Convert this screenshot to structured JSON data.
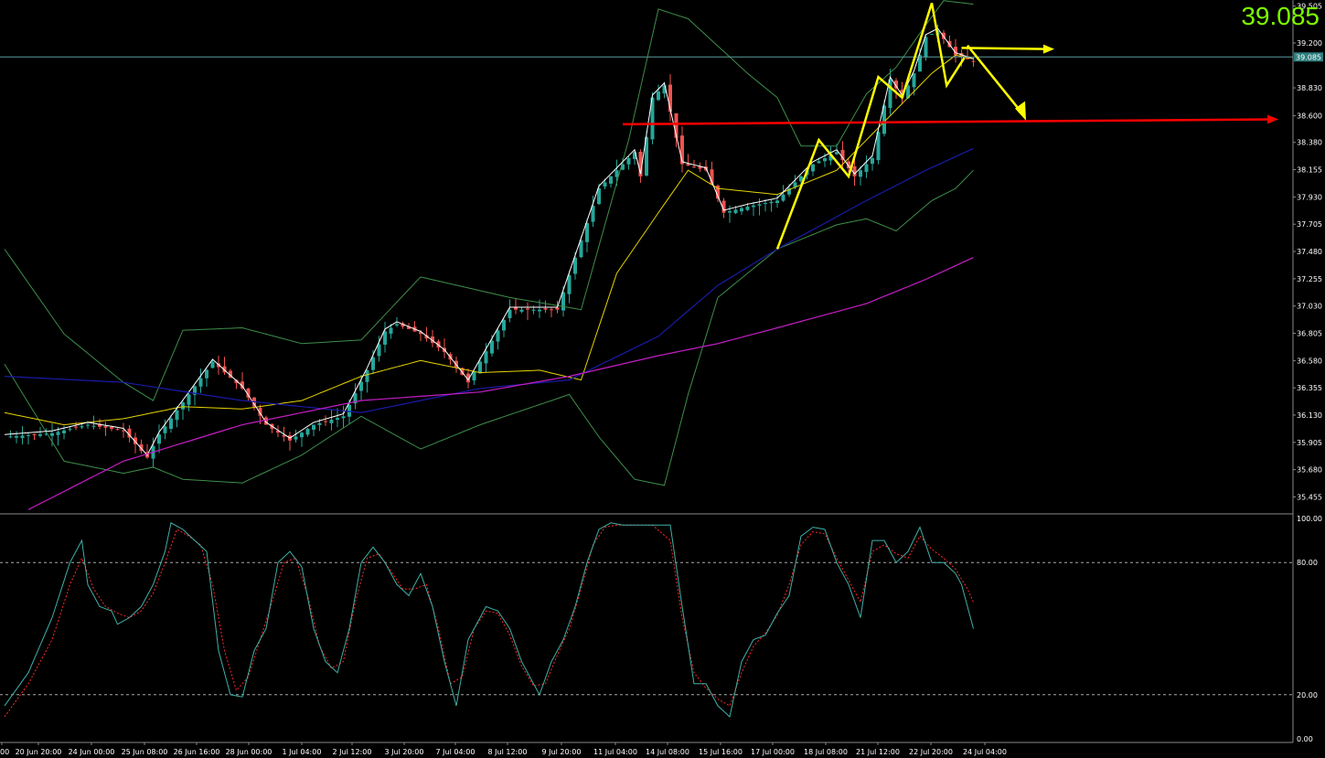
{
  "current_price_label": "39.085",
  "chart_data": [
    {
      "type": "candlestick",
      "title": "",
      "price_axis_ticks": [
        "39.505",
        "39.200",
        "38.830",
        "38.600",
        "38.380",
        "38.155",
        "37.930",
        "37.705",
        "37.480",
        "37.255",
        "37.030",
        "36.805",
        "36.580",
        "36.355",
        "36.130",
        "35.905",
        "35.680",
        "35.455"
      ],
      "current_price": 39.085,
      "current_price_tag": "39.085",
      "ylim": [
        35.33,
        39.555
      ],
      "time_axis_ticks": [
        "00",
        "20 Jun 20:00",
        "24 Jun 00:00",
        "25 Jun 08:00",
        "26 Jun 16:00",
        "28 Jun 00:00",
        "1 Jul 04:00",
        "2 Jul 12:00",
        "3 Jul 20:00",
        "7 Jul 04:00",
        "8 Jul 12:00",
        "9 Jul 20:00",
        "11 Jul 04:00",
        "14 Jul 08:00",
        "15 Jul 16:00",
        "17 Jul 00:00",
        "18 Jul 08:00",
        "21 Jul 12:00",
        "22 Jul 20:00",
        "24 Jul 04:00"
      ],
      "colors": {
        "bull": "#26a69a",
        "bear": "#ef5350",
        "bollinger": "#3e8e4a",
        "ma_fast": "#ffffff",
        "ma_mid": "#e6d300",
        "ma_slow": "#1a1aa8",
        "ma_long": "#c41ec4",
        "support_line": "#ff0000",
        "annotation_arrows": "#ffff00",
        "grid_line": "#5a9a9a"
      },
      "close_trend": [
        [
          0,
          35.95
        ],
        [
          8,
          35.98
        ],
        [
          14,
          36.05
        ],
        [
          20,
          36.0
        ],
        [
          24,
          35.78
        ],
        [
          26,
          35.97
        ],
        [
          31,
          36.3
        ],
        [
          35,
          36.57
        ],
        [
          40,
          36.35
        ],
        [
          44,
          36.05
        ],
        [
          48,
          35.92
        ],
        [
          52,
          36.05
        ],
        [
          57,
          36.12
        ],
        [
          61,
          36.5
        ],
        [
          64,
          36.82
        ],
        [
          66,
          36.88
        ],
        [
          70,
          36.8
        ],
        [
          74,
          36.65
        ],
        [
          78,
          36.4
        ],
        [
          85,
          37.0
        ],
        [
          93,
          37.0
        ],
        [
          100,
          38.0
        ],
        [
          106,
          38.3
        ],
        [
          107,
          38.1
        ],
        [
          109,
          38.75
        ],
        [
          111,
          38.85
        ],
        [
          114,
          38.2
        ],
        [
          118,
          38.15
        ],
        [
          121,
          37.8
        ],
        [
          125,
          37.85
        ],
        [
          130,
          37.9
        ],
        [
          136,
          38.2
        ],
        [
          140,
          38.3
        ],
        [
          143,
          38.1
        ],
        [
          146,
          38.25
        ],
        [
          149,
          38.9
        ],
        [
          151,
          38.75
        ],
        [
          153,
          38.95
        ],
        [
          155,
          39.25
        ],
        [
          157,
          39.3
        ],
        [
          160,
          39.1
        ],
        [
          163,
          39.05
        ]
      ],
      "bollinger_upper": [
        [
          0,
          37.5
        ],
        [
          10,
          36.8
        ],
        [
          20,
          36.4
        ],
        [
          25,
          36.25
        ],
        [
          30,
          36.83
        ],
        [
          40,
          36.85
        ],
        [
          50,
          36.72
        ],
        [
          60,
          36.75
        ],
        [
          70,
          37.27
        ],
        [
          85,
          37.1
        ],
        [
          97,
          37.0
        ],
        [
          105,
          38.4
        ],
        [
          110,
          39.48
        ],
        [
          115,
          39.4
        ],
        [
          125,
          38.95
        ],
        [
          130,
          38.75
        ],
        [
          134,
          38.35
        ],
        [
          140,
          38.35
        ],
        [
          145,
          38.78
        ],
        [
          150,
          39.0
        ],
        [
          155,
          39.35
        ],
        [
          158,
          39.55
        ],
        [
          163,
          39.52
        ]
      ],
      "bollinger_lower": [
        [
          0,
          36.55
        ],
        [
          10,
          35.75
        ],
        [
          20,
          35.65
        ],
        [
          25,
          35.7
        ],
        [
          30,
          35.6
        ],
        [
          40,
          35.57
        ],
        [
          50,
          35.8
        ],
        [
          60,
          36.12
        ],
        [
          70,
          35.85
        ],
        [
          80,
          36.05
        ],
        [
          95,
          36.3
        ],
        [
          100,
          35.95
        ],
        [
          106,
          35.6
        ],
        [
          111,
          35.55
        ],
        [
          115,
          36.3
        ],
        [
          120,
          37.1
        ],
        [
          130,
          37.5
        ],
        [
          140,
          37.7
        ],
        [
          145,
          37.75
        ],
        [
          150,
          37.65
        ],
        [
          156,
          37.9
        ],
        [
          160,
          38.0
        ],
        [
          163,
          38.15
        ]
      ],
      "bollinger_mid": [
        [
          0,
          36.15
        ],
        [
          10,
          36.05
        ],
        [
          20,
          36.1
        ],
        [
          30,
          36.2
        ],
        [
          40,
          36.18
        ],
        [
          50,
          36.25
        ],
        [
          60,
          36.45
        ],
        [
          70,
          36.58
        ],
        [
          80,
          36.48
        ],
        [
          90,
          36.5
        ],
        [
          97,
          36.42
        ],
        [
          103,
          37.3
        ],
        [
          110,
          37.8
        ],
        [
          115,
          38.15
        ],
        [
          120,
          38.0
        ],
        [
          130,
          37.95
        ],
        [
          140,
          38.15
        ],
        [
          146,
          38.45
        ],
        [
          150,
          38.65
        ],
        [
          156,
          38.95
        ],
        [
          160,
          39.1
        ],
        [
          163,
          39.07
        ]
      ],
      "ma_slow": [
        [
          0,
          36.45
        ],
        [
          20,
          36.4
        ],
        [
          40,
          36.25
        ],
        [
          60,
          36.15
        ],
        [
          80,
          36.35
        ],
        [
          95,
          36.42
        ],
        [
          110,
          36.78
        ],
        [
          120,
          37.2
        ],
        [
          130,
          37.5
        ],
        [
          145,
          37.9
        ],
        [
          155,
          38.15
        ],
        [
          163,
          38.33
        ]
      ],
      "ma_long": [
        [
          4,
          35.35
        ],
        [
          20,
          35.75
        ],
        [
          40,
          36.05
        ],
        [
          60,
          36.25
        ],
        [
          80,
          36.32
        ],
        [
          95,
          36.45
        ],
        [
          110,
          36.62
        ],
        [
          120,
          36.72
        ],
        [
          130,
          36.85
        ],
        [
          145,
          37.05
        ],
        [
          155,
          37.25
        ],
        [
          163,
          37.43
        ]
      ]
    },
    {
      "type": "line",
      "title": "",
      "ylim": [
        0,
        100
      ],
      "axis_ticks": [
        "100.00",
        "80.00",
        "20.00",
        "0.00"
      ],
      "levels": [
        80,
        20
      ],
      "series": [
        {
          "color": "#3fb0a8",
          "values": [
            [
              0,
              15
            ],
            [
              4,
              30
            ],
            [
              8,
              55
            ],
            [
              11,
              80
            ],
            [
              13,
              90
            ],
            [
              14,
              70
            ],
            [
              16,
              60
            ],
            [
              18,
              58
            ],
            [
              19,
              52
            ],
            [
              21,
              55
            ],
            [
              23,
              60
            ],
            [
              25,
              70
            ],
            [
              27,
              85
            ],
            [
              28,
              98
            ],
            [
              30,
              95
            ],
            [
              32,
              90
            ],
            [
              34,
              85
            ],
            [
              36,
              40
            ],
            [
              38,
              20
            ],
            [
              40,
              19
            ],
            [
              42,
              40
            ],
            [
              44,
              50
            ],
            [
              46,
              80
            ],
            [
              48,
              85
            ],
            [
              50,
              78
            ],
            [
              52,
              50
            ],
            [
              54,
              35
            ],
            [
              56,
              30
            ],
            [
              58,
              50
            ],
            [
              60,
              80
            ],
            [
              62,
              87
            ],
            [
              64,
              80
            ],
            [
              66,
              70
            ],
            [
              68,
              65
            ],
            [
              70,
              75
            ],
            [
              72,
              60
            ],
            [
              74,
              35
            ],
            [
              76,
              15
            ],
            [
              78,
              45
            ],
            [
              81,
              60
            ],
            [
              83,
              58
            ],
            [
              85,
              50
            ],
            [
              87,
              35
            ],
            [
              89,
              25
            ],
            [
              90,
              20
            ],
            [
              92,
              35
            ],
            [
              94,
              45
            ],
            [
              96,
              60
            ],
            [
              98,
              80
            ],
            [
              100,
              95
            ],
            [
              102,
              98
            ],
            [
              104,
              97
            ],
            [
              108,
              97
            ],
            [
              110,
              97
            ],
            [
              112,
              97
            ],
            [
              114,
              60
            ],
            [
              116,
              25
            ],
            [
              118,
              25
            ],
            [
              120,
              15
            ],
            [
              122,
              10
            ],
            [
              124,
              35
            ],
            [
              126,
              45
            ],
            [
              128,
              47
            ],
            [
              130,
              57
            ],
            [
              132,
              65
            ],
            [
              134,
              92
            ],
            [
              136,
              96
            ],
            [
              138,
              95
            ],
            [
              140,
              80
            ],
            [
              142,
              70
            ],
            [
              144,
              55
            ],
            [
              146,
              90
            ],
            [
              148,
              90
            ],
            [
              150,
              80
            ],
            [
              152,
              85
            ],
            [
              154,
              96
            ],
            [
              156,
              80
            ],
            [
              158,
              80
            ],
            [
              160,
              75
            ],
            [
              161,
              70
            ],
            [
              163,
              50
            ]
          ]
        },
        {
          "color": "#ff2a2a",
          "values": [
            [
              0,
              10
            ],
            [
              4,
              25
            ],
            [
              8,
              45
            ],
            [
              11,
              70
            ],
            [
              13,
              82
            ],
            [
              15,
              68
            ],
            [
              17,
              60
            ],
            [
              19,
              57
            ],
            [
              21,
              55
            ],
            [
              23,
              58
            ],
            [
              25,
              66
            ],
            [
              27,
              80
            ],
            [
              29,
              95
            ],
            [
              31,
              92
            ],
            [
              33,
              88
            ],
            [
              35,
              70
            ],
            [
              37,
              40
            ],
            [
              39,
              22
            ],
            [
              41,
              28
            ],
            [
              43,
              45
            ],
            [
              45,
              62
            ],
            [
              47,
              80
            ],
            [
              49,
              82
            ],
            [
              51,
              65
            ],
            [
              53,
              42
            ],
            [
              55,
              32
            ],
            [
              57,
              35
            ],
            [
              59,
              62
            ],
            [
              61,
              82
            ],
            [
              63,
              84
            ],
            [
              65,
              76
            ],
            [
              67,
              68
            ],
            [
              69,
              68
            ],
            [
              71,
              70
            ],
            [
              73,
              50
            ],
            [
              75,
              25
            ],
            [
              77,
              28
            ],
            [
              79,
              50
            ],
            [
              81,
              58
            ],
            [
              83,
              57
            ],
            [
              85,
              47
            ],
            [
              87,
              33
            ],
            [
              89,
              24
            ],
            [
              91,
              25
            ],
            [
              93,
              38
            ],
            [
              95,
              50
            ],
            [
              97,
              68
            ],
            [
              99,
              88
            ],
            [
              101,
              96
            ],
            [
              103,
              97
            ],
            [
              109,
              97
            ],
            [
              112,
              90
            ],
            [
              114,
              55
            ],
            [
              116,
              30
            ],
            [
              118,
              23
            ],
            [
              120,
              18
            ],
            [
              122,
              15
            ],
            [
              124,
              30
            ],
            [
              126,
              42
            ],
            [
              128,
              48
            ],
            [
              130,
              56
            ],
            [
              132,
              70
            ],
            [
              134,
              88
            ],
            [
              136,
              94
            ],
            [
              138,
              93
            ],
            [
              140,
              82
            ],
            [
              142,
              72
            ],
            [
              144,
              62
            ],
            [
              146,
              85
            ],
            [
              148,
              88
            ],
            [
              150,
              84
            ],
            [
              152,
              82
            ],
            [
              154,
              92
            ],
            [
              156,
              86
            ],
            [
              158,
              82
            ],
            [
              160,
              77
            ],
            [
              162,
              68
            ],
            [
              163,
              62
            ]
          ]
        }
      ]
    }
  ]
}
